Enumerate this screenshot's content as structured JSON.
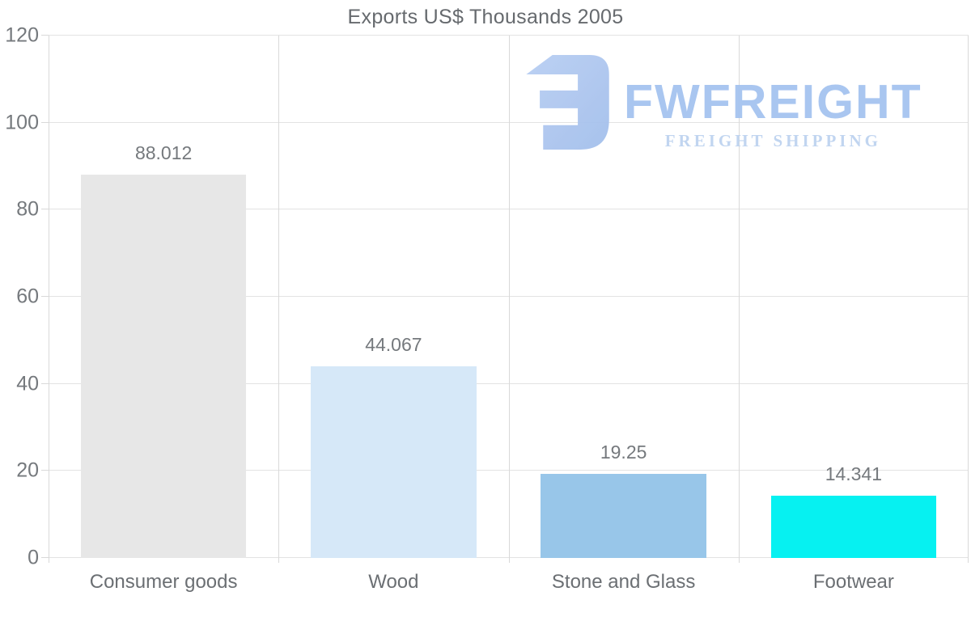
{
  "chart_data": {
    "type": "bar",
    "title": "Exports US$ Thousands 2005",
    "categories": [
      "Consumer goods",
      "Wood",
      "Stone and Glass",
      "Footwear"
    ],
    "values": [
      88.012,
      44.067,
      19.25,
      14.341
    ],
    "value_labels": [
      "88.012",
      "44.067",
      "19.25",
      "14.341"
    ],
    "bar_colors": [
      "#e7e7e7",
      "#d6e8f8",
      "#98c6e9",
      "#06f1f1"
    ],
    "xlabel": "",
    "ylabel": "",
    "ylim": [
      0,
      120
    ],
    "yticks": [
      0,
      20,
      40,
      60,
      80,
      100,
      120
    ],
    "grid": "horizontal and vertical light gray gridlines, on",
    "legend": "none"
  },
  "watermark": {
    "brand": "FWFREIGHT",
    "tagline": "FREIGHT SHIPPING",
    "logo_icon": "fwfreight-logo-mark",
    "colors": {
      "mark": "#abc5ef",
      "mark_light": "#b9cff3",
      "wordmark": "#a5c3f0",
      "tagline": "#bed3f0"
    }
  },
  "colors": {
    "background": "#ffffff",
    "title_text": "#666a6e",
    "axis_text": "#75797d",
    "category_text": "#6b6f73",
    "hgrid": "#e3e3e3",
    "vgrid": "#d9d9d9"
  }
}
